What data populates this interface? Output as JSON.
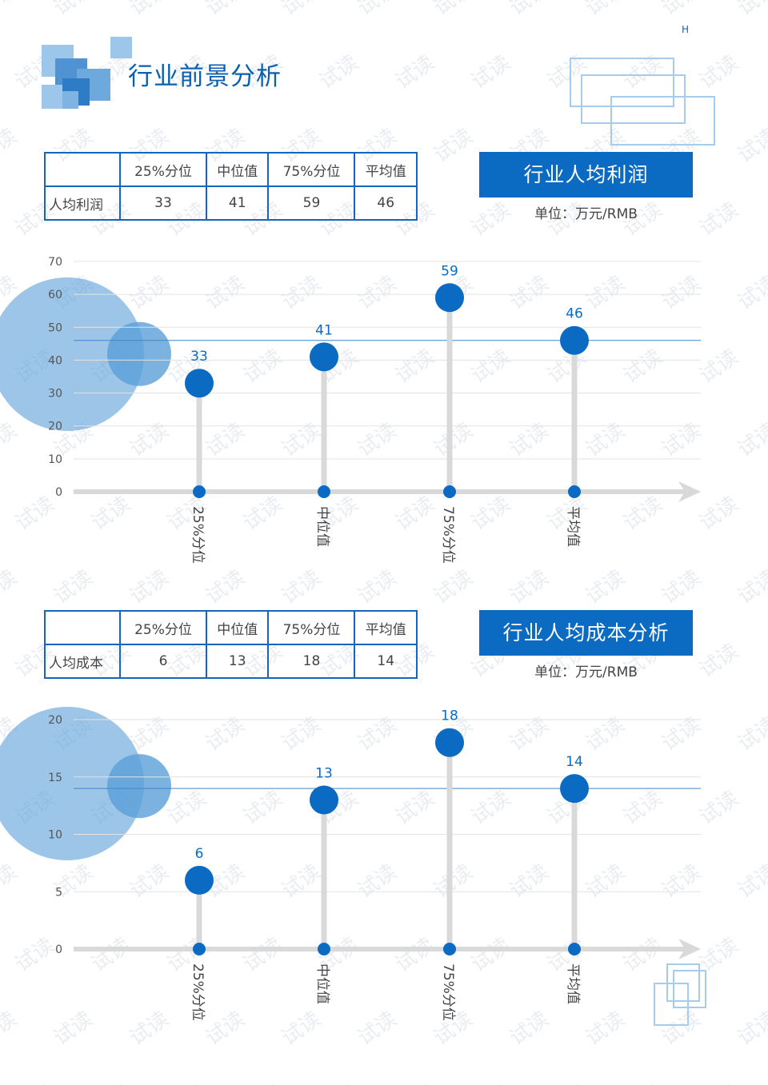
{
  "header": {
    "corner_mark": "H",
    "page_title": "行业前景分析"
  },
  "colors": {
    "primary": "#0b6ac2",
    "table_border": "#1466bd",
    "bubble": "#5a9fd8",
    "stem": "#d9d9d9",
    "grid": "#e3e3e3"
  },
  "watermark": "试读",
  "profit_section": {
    "table": {
      "columns": [
        "",
        "25%分位",
        "中位值",
        "75%分位",
        "平均值"
      ],
      "row": [
        "人均利润",
        "33",
        "41",
        "59",
        "46"
      ]
    },
    "banner": "行业人均利润",
    "unit": "单位：万元/RMB"
  },
  "cost_section": {
    "table": {
      "columns": [
        "",
        "25%分位",
        "中位值",
        "75%分位",
        "平均值"
      ],
      "row": [
        "人均成本",
        "6",
        "13",
        "18",
        "14"
      ]
    },
    "banner": "行业人均成本分析",
    "unit": "单位：万元/RMB"
  },
  "chart_data": [
    {
      "type": "scatter",
      "categories": [
        "25%分位",
        "中位值",
        "75%分位",
        "平均值"
      ],
      "values": [
        33,
        41,
        59,
        46
      ],
      "y_ticks": [
        0,
        10,
        20,
        30,
        40,
        50,
        60,
        70
      ],
      "ylim": [
        0,
        70
      ],
      "reference_line": 46,
      "grid": true
    },
    {
      "type": "scatter",
      "categories": [
        "25%分位",
        "中位值",
        "75%分位",
        "平均值"
      ],
      "values": [
        6,
        13,
        18,
        14
      ],
      "y_ticks": [
        0,
        5,
        10,
        15,
        20
      ],
      "ylim": [
        0,
        20
      ],
      "reference_line": 14,
      "grid": true
    }
  ]
}
